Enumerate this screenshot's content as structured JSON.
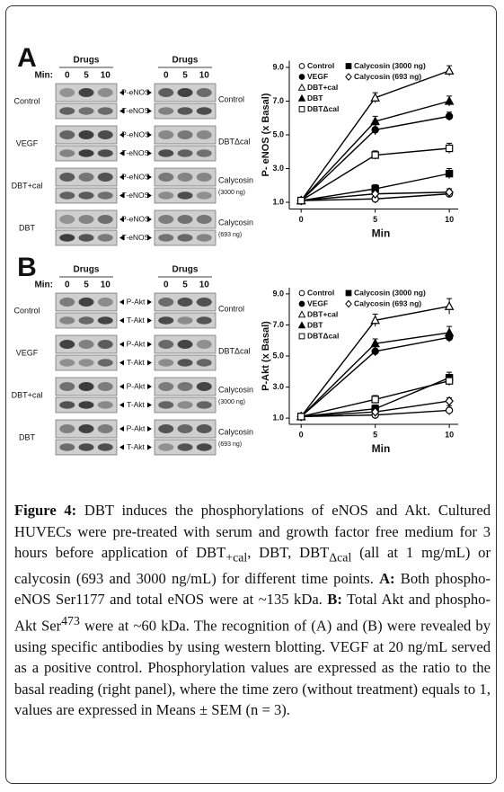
{
  "figure": {
    "panels": [
      {
        "letter": "A",
        "drugs_label": "Drugs",
        "min_label": "Min:",
        "times": [
          "0",
          "5",
          "10"
        ],
        "left_rows": [
          "Control",
          "VEGF",
          "DBT+cal",
          "DBT"
        ],
        "bands": [
          "P-eNOS",
          "T-eNOS"
        ],
        "right_rows": [
          [
            "Control"
          ],
          [
            "DBTΔcal"
          ],
          [
            "Calycosin",
            "(3000 ng)"
          ],
          [
            "Calycosin",
            "(693 ng)"
          ]
        ]
      },
      {
        "letter": "B",
        "drugs_label": "Drugs",
        "min_label": "Min:",
        "times": [
          "0",
          "5",
          "10"
        ],
        "left_rows": [
          "Control",
          "VEGF",
          "DBT+cal",
          "DBT"
        ],
        "bands": [
          "P-Akt",
          "T-Akt"
        ],
        "right_rows": [
          [
            "Control"
          ],
          [
            "DBTΔcal"
          ],
          [
            "Calycosin",
            "(3000 ng)"
          ],
          [
            "Calycosin",
            "(693 ng)"
          ]
        ]
      }
    ]
  },
  "chart_data": [
    {
      "type": "line",
      "ylabel": "P- eNOS (x Basal)",
      "xlabel": "Min",
      "x": [
        0,
        5,
        10
      ],
      "xlim": [
        -0.8,
        10.6
      ],
      "xticks": [
        0,
        5,
        10
      ],
      "ylim": [
        0.6,
        9.4
      ],
      "yticks": [
        {
          "value": 1,
          "label": "1.0"
        },
        {
          "value": 3,
          "label": "3.0"
        },
        {
          "value": 5,
          "label": "5.0"
        },
        {
          "value": 7,
          "label": "7.0"
        },
        {
          "value": 9,
          "label": "9.0"
        }
      ],
      "series": [
        {
          "name": "Control",
          "color": "#000000",
          "marker": "circle-open",
          "values": [
            1.1,
            1.2,
            1.5
          ],
          "errors": [
            0.1,
            0.25,
            0.2
          ]
        },
        {
          "name": "Calycosin (3000 ng)",
          "color": "#000000",
          "marker": "square",
          "values": [
            1.1,
            1.8,
            2.7
          ],
          "errors": [
            0.1,
            0.25,
            0.3
          ]
        },
        {
          "name": "VEGF",
          "color": "#000000",
          "marker": "circle",
          "values": [
            1.1,
            5.3,
            6.1
          ],
          "errors": [
            0.1,
            0.3,
            0.25
          ]
        },
        {
          "name": "Calycosin (693 ng)",
          "color": "#000000",
          "marker": "diamond-open",
          "values": [
            1.1,
            1.5,
            1.6
          ],
          "errors": [
            0.1,
            0.2,
            0.2
          ]
        },
        {
          "name": "DBT+cal",
          "color": "#000000",
          "marker": "triangle-open",
          "values": [
            1.1,
            7.2,
            8.8
          ],
          "errors": [
            0.1,
            0.3,
            0.3
          ]
        },
        {
          "name": "DBT",
          "color": "#000000",
          "marker": "triangle",
          "values": [
            1.1,
            5.8,
            7.0
          ],
          "errors": [
            0.1,
            0.3,
            0.3
          ]
        },
        {
          "name": "DBTΔcal",
          "color": "#000000",
          "marker": "square-open",
          "values": [
            1.1,
            3.8,
            4.2
          ],
          "errors": [
            0.1,
            0.25,
            0.3
          ]
        }
      ]
    },
    {
      "type": "line",
      "ylabel": "P-Akt (x Basal)",
      "xlabel": "Min",
      "x": [
        0,
        5,
        10
      ],
      "xlim": [
        -0.8,
        10.6
      ],
      "xticks": [
        0,
        5,
        10
      ],
      "ylim": [
        0.6,
        9.4
      ],
      "yticks": [
        {
          "value": 1,
          "label": "1.0"
        },
        {
          "value": 3,
          "label": "3.0"
        },
        {
          "value": 5,
          "label": "5.0"
        },
        {
          "value": 7,
          "label": "7.0"
        },
        {
          "value": 9,
          "label": "9.0"
        }
      ],
      "series": [
        {
          "name": "Control",
          "color": "#000000",
          "marker": "circle-open",
          "values": [
            1.1,
            1.2,
            1.5
          ],
          "errors": [
            0.1,
            0.25,
            0.3
          ]
        },
        {
          "name": "Calycosin (3000 ng)",
          "color": "#000000",
          "marker": "square",
          "values": [
            1.1,
            1.6,
            3.6
          ],
          "errors": [
            0.1,
            0.25,
            0.35
          ]
        },
        {
          "name": "VEGF",
          "color": "#000000",
          "marker": "circle",
          "values": [
            1.1,
            5.3,
            6.2
          ],
          "errors": [
            0.1,
            0.3,
            0.3
          ]
        },
        {
          "name": "Calycosin (693 ng)",
          "color": "#000000",
          "marker": "diamond-open",
          "values": [
            1.1,
            1.4,
            2.1
          ],
          "errors": [
            0.1,
            0.2,
            0.2
          ]
        },
        {
          "name": "DBT+cal",
          "color": "#000000",
          "marker": "triangle-open",
          "values": [
            1.1,
            7.3,
            8.2
          ],
          "errors": [
            0.1,
            0.4,
            0.5
          ]
        },
        {
          "name": "DBT",
          "color": "#000000",
          "marker": "triangle",
          "values": [
            1.1,
            5.8,
            6.5
          ],
          "errors": [
            0.1,
            0.3,
            0.4
          ]
        },
        {
          "name": "DBTΔcal",
          "color": "#000000",
          "marker": "square-open",
          "values": [
            1.1,
            2.2,
            3.4
          ],
          "errors": [
            0.1,
            0.25,
            0.3
          ]
        }
      ]
    }
  ],
  "caption": {
    "label": "Figure 4:",
    "parts": [
      " DBT induces the phosphorylations of eNOS and Akt. Cultured HUVECs were pre-treated with serum and growth factor free medium for 3 hours before application of DBT",
      "+cal",
      ", DBT, DBT",
      "Δcal",
      " (all at 1 mg/mL) or calycosin (693 and 3000 ng/mL) for different time points. ",
      "A:",
      " Both phospho-eNOS Ser1177 and total eNOS were at ~135 kDa. ",
      "B:",
      " Total Akt and phospho-Akt Ser",
      "473",
      " were at ~60 kDa. The recognition of (A) and (B) were revealed by using specific antibodies by using western blotting. VEGF at 20 ng/mL served as a positive control. Phosphorylation values are expressed as the ratio to the basal reading (right panel), where the time zero (without treatment) equals to 1, values are expressed in Means ± SEM (n = 3)."
    ]
  }
}
